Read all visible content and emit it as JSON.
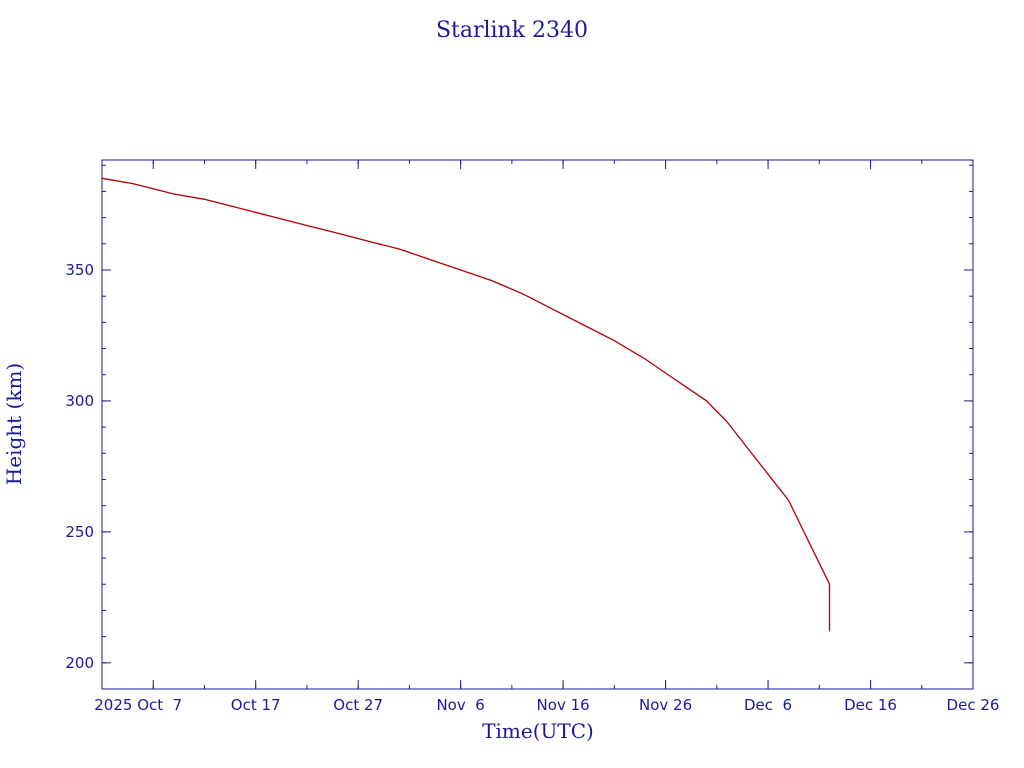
{
  "chart_data": {
    "type": "line",
    "title": "Starlink 2340",
    "xlabel": "Time(UTC)",
    "ylabel": "Height (km)",
    "x_tick_labels": [
      "2025 Oct  7",
      "Oct 17",
      "Oct 27",
      "Nov  6",
      "Nov 16",
      "Nov 26",
      "Dec  6",
      "Dec 16",
      "Dec 26"
    ],
    "y_tick_labels": [
      "200",
      "250",
      "300",
      "350"
    ],
    "xlim": [
      "2025-10-02",
      "2025-12-26"
    ],
    "ylim": [
      190,
      392
    ],
    "x_major_ticks": [
      "2025-10-07",
      "2025-10-17",
      "2025-10-27",
      "2025-11-06",
      "2025-11-16",
      "2025-11-26",
      "2025-12-06",
      "2025-12-16",
      "2025-12-26"
    ],
    "y_major_ticks": [
      200,
      250,
      300,
      350
    ],
    "grid": false,
    "series": [
      {
        "color": "#b00000",
        "x": [
          "2025-10-02",
          "2025-10-05",
          "2025-10-07",
          "2025-10-09",
          "2025-10-12",
          "2025-10-14",
          "2025-10-16",
          "2025-10-19",
          "2025-10-22",
          "2025-10-25",
          "2025-10-28",
          "2025-10-31",
          "2025-11-03",
          "2025-11-06",
          "2025-11-09",
          "2025-11-12",
          "2025-11-15",
          "2025-11-18",
          "2025-11-21",
          "2025-11-24",
          "2025-11-27",
          "2025-11-30",
          "2025-12-02",
          "2025-12-04",
          "2025-12-06",
          "2025-12-08",
          "2025-12-09",
          "2025-12-10",
          "2025-12-11",
          "2025-12-12",
          "2025-12-12",
          "2025-12-12"
        ],
        "y": [
          385,
          383,
          381,
          379,
          377,
          375,
          373,
          370,
          367,
          364,
          361,
          358,
          354,
          350,
          346,
          341,
          335,
          329,
          323,
          316,
          308,
          300,
          292,
          282,
          272,
          262,
          254,
          246,
          238,
          230,
          220,
          212
        ]
      }
    ]
  }
}
